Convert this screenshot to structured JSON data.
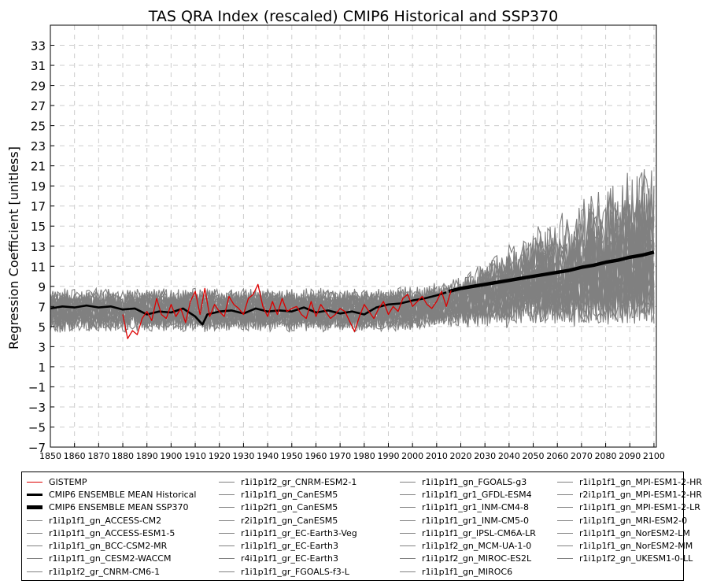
{
  "chart_data": {
    "type": "line",
    "title": "TAS QRA Index (rescaled) CMIP6 Historical and SSP370",
    "xlabel": "",
    "ylabel": "Regression Coefficient [unitless]",
    "xlim": [
      1850,
      2101
    ],
    "ylim": [
      -7,
      35
    ],
    "xticks": [
      1850,
      1860,
      1870,
      1880,
      1890,
      1900,
      1910,
      1920,
      1930,
      1940,
      1950,
      1960,
      1970,
      1980,
      1990,
      2000,
      2010,
      2020,
      2030,
      2040,
      2050,
      2060,
      2070,
      2080,
      2090,
      2100
    ],
    "yticks": [
      -7,
      -5,
      -3,
      -1,
      1,
      3,
      5,
      7,
      9,
      11,
      13,
      15,
      17,
      19,
      21,
      23,
      25,
      27,
      29,
      31,
      33
    ],
    "grid": true,
    "legend_position": "below",
    "colors": {
      "observed": "#dd0000",
      "ensemble": "#000000",
      "models": "#808080"
    },
    "observed": {
      "name": "GISTEMP",
      "x": [
        1880,
        1882,
        1884,
        1886,
        1888,
        1890,
        1892,
        1894,
        1896,
        1898,
        1900,
        1902,
        1904,
        1906,
        1908,
        1910,
        1912,
        1914,
        1916,
        1918,
        1920,
        1922,
        1924,
        1926,
        1928,
        1930,
        1932,
        1934,
        1936,
        1938,
        1940,
        1942,
        1944,
        1946,
        1948,
        1950,
        1952,
        1954,
        1956,
        1958,
        1960,
        1962,
        1964,
        1966,
        1968,
        1970,
        1972,
        1974,
        1976,
        1978,
        1980,
        1982,
        1984,
        1986,
        1988,
        1990,
        1992,
        1994,
        1996,
        1998,
        2000,
        2002,
        2004,
        2006,
        2008,
        2010,
        2012,
        2014,
        2016
      ],
      "y": [
        6.2,
        3.8,
        4.6,
        4.2,
        5.8,
        6.5,
        5.6,
        7.8,
        6.2,
        5.8,
        7.2,
        6.0,
        6.8,
        5.4,
        7.5,
        8.5,
        6.2,
        8.8,
        6.0,
        7.2,
        6.5,
        6.0,
        8.0,
        7.2,
        6.8,
        6.2,
        7.8,
        8.2,
        9.2,
        7.0,
        6.0,
        7.5,
        6.2,
        7.8,
        6.5,
        6.8,
        7.0,
        6.2,
        5.8,
        7.5,
        6.0,
        7.2,
        6.5,
        5.8,
        6.2,
        6.8,
        6.5,
        5.5,
        4.5,
        6.0,
        7.2,
        6.5,
        5.8,
        6.8,
        7.5,
        6.2,
        7.0,
        6.5,
        7.8,
        8.2,
        7.0,
        7.5,
        8.0,
        7.2,
        6.8,
        7.5,
        8.5,
        7.0,
        8.6
      ]
    },
    "ensemble_historical": {
      "name": "CMIP6 ENSEMBLE MEAN Historical",
      "x": [
        1850,
        1855,
        1860,
        1865,
        1870,
        1875,
        1880,
        1885,
        1890,
        1895,
        1900,
        1905,
        1910,
        1913,
        1915,
        1920,
        1925,
        1930,
        1935,
        1940,
        1945,
        1950,
        1955,
        1960,
        1965,
        1970,
        1975,
        1980,
        1985,
        1990,
        1995,
        2000,
        2005,
        2010,
        2014
      ],
      "y": [
        6.8,
        7.0,
        6.9,
        7.1,
        6.9,
        7.0,
        6.7,
        6.8,
        6.2,
        6.5,
        6.4,
        6.8,
        6.0,
        5.2,
        6.2,
        6.5,
        6.6,
        6.3,
        6.8,
        6.5,
        6.6,
        6.5,
        6.9,
        6.4,
        6.6,
        6.3,
        6.5,
        6.2,
        6.9,
        7.2,
        7.3,
        7.6,
        7.8,
        8.1,
        8.4
      ]
    },
    "ensemble_ssp370": {
      "name": "CMIP6 ENSEMBLE MEAN SSP370",
      "x": [
        2015,
        2020,
        2025,
        2030,
        2035,
        2040,
        2045,
        2050,
        2055,
        2060,
        2065,
        2070,
        2075,
        2080,
        2085,
        2090,
        2095,
        2100
      ],
      "y": [
        8.5,
        8.8,
        9.0,
        9.2,
        9.4,
        9.6,
        9.8,
        10.0,
        10.2,
        10.4,
        10.6,
        10.9,
        11.1,
        11.4,
        11.6,
        11.9,
        12.1,
        12.4
      ]
    },
    "model_names": [
      "r1i1p1f1_gn_ACCESS-CM2",
      "r1i1p1f1_gn_ACCESS-ESM1-5",
      "r1i1p1f1_gn_BCC-CSM2-MR",
      "r1i1p1f1_gn_CESM2-WACCM",
      "r1i1p1f2_gr_CNRM-CM6-1",
      "r1i1p1f2_gr_CNRM-ESM2-1",
      "r1i1p1f1_gn_CanESM5",
      "r1i1p2f1_gn_CanESM5",
      "r2i1p1f1_gn_CanESM5",
      "r1i1p1f1_gr_EC-Earth3-Veg",
      "r1i1p1f1_gr_EC-Earth3",
      "r4i1p1f1_gr_EC-Earth3",
      "r1i1p1f1_gr_FGOALS-f3-L",
      "r1i1p1f1_gn_FGOALS-g3",
      "r1i1p1f1_gr1_GFDL-ESM4",
      "r1i1p1f1_gr1_INM-CM4-8",
      "r1i1p1f1_gr1_INM-CM5-0",
      "r1i1p1f1_gr_IPSL-CM6A-LR",
      "r1i1p1f2_gn_MCM-UA-1-0",
      "r1i1p1f2_gn_MIROC-ES2L",
      "r1i1p1f1_gn_MIROC6",
      "r1i1p1f1_gn_MPI-ESM1-2-HR",
      "r2i1p1f1_gn_MPI-ESM1-2-HR",
      "r1i1p1f1_gn_MPI-ESM1-2-LR",
      "r1i1p1f1_gn_MRI-ESM2-0",
      "r1i1p1f1_gn_NorESM2-LM",
      "r1i1p1f1_gn_NorESM2-MM",
      "r1i1p1f2_gn_UKESM1-0-LL"
    ]
  },
  "legend": {
    "columns": [
      [
        {
          "label": "GISTEMP",
          "style": "observed"
        },
        {
          "label": "CMIP6 ENSEMBLE MEAN Historical",
          "style": "hist"
        },
        {
          "label": "CMIP6 ENSEMBLE MEAN SSP370",
          "style": "ssp"
        },
        {
          "label": "r1i1p1f1_gn_ACCESS-CM2",
          "style": "model"
        },
        {
          "label": "r1i1p1f1_gn_ACCESS-ESM1-5",
          "style": "model"
        },
        {
          "label": "r1i1p1f1_gn_BCC-CSM2-MR",
          "style": "model"
        },
        {
          "label": "r1i1p1f1_gn_CESM2-WACCM",
          "style": "model"
        },
        {
          "label": "r1i1p1f2_gr_CNRM-CM6-1",
          "style": "model"
        }
      ],
      [
        {
          "label": "r1i1p1f2_gr_CNRM-ESM2-1",
          "style": "model"
        },
        {
          "label": "r1i1p1f1_gn_CanESM5",
          "style": "model"
        },
        {
          "label": "r1i1p2f1_gn_CanESM5",
          "style": "model"
        },
        {
          "label": "r2i1p1f1_gn_CanESM5",
          "style": "model"
        },
        {
          "label": "r1i1p1f1_gr_EC-Earth3-Veg",
          "style": "model"
        },
        {
          "label": "r1i1p1f1_gr_EC-Earth3",
          "style": "model"
        },
        {
          "label": "r4i1p1f1_gr_EC-Earth3",
          "style": "model"
        },
        {
          "label": "r1i1p1f1_gr_FGOALS-f3-L",
          "style": "model"
        }
      ],
      [
        {
          "label": "r1i1p1f1_gn_FGOALS-g3",
          "style": "model"
        },
        {
          "label": "r1i1p1f1_gr1_GFDL-ESM4",
          "style": "model"
        },
        {
          "label": "r1i1p1f1_gr1_INM-CM4-8",
          "style": "model"
        },
        {
          "label": "r1i1p1f1_gr1_INM-CM5-0",
          "style": "model"
        },
        {
          "label": "r1i1p1f1_gr_IPSL-CM6A-LR",
          "style": "model"
        },
        {
          "label": "r1i1p1f2_gn_MCM-UA-1-0",
          "style": "model"
        },
        {
          "label": "r1i1p1f2_gn_MIROC-ES2L",
          "style": "model"
        },
        {
          "label": "r1i1p1f1_gn_MIROC6",
          "style": "model"
        }
      ],
      [
        {
          "label": "r1i1p1f1_gn_MPI-ESM1-2-HR",
          "style": "model"
        },
        {
          "label": "r2i1p1f1_gn_MPI-ESM1-2-HR",
          "style": "model"
        },
        {
          "label": "r1i1p1f1_gn_MPI-ESM1-2-LR",
          "style": "model"
        },
        {
          "label": "r1i1p1f1_gn_MRI-ESM2-0",
          "style": "model"
        },
        {
          "label": "r1i1p1f1_gn_NorESM2-LM",
          "style": "model"
        },
        {
          "label": "r1i1p1f1_gn_NorESM2-MM",
          "style": "model"
        },
        {
          "label": "r1i1p1f2_gn_UKESM1-0-LL",
          "style": "model"
        }
      ]
    ]
  }
}
